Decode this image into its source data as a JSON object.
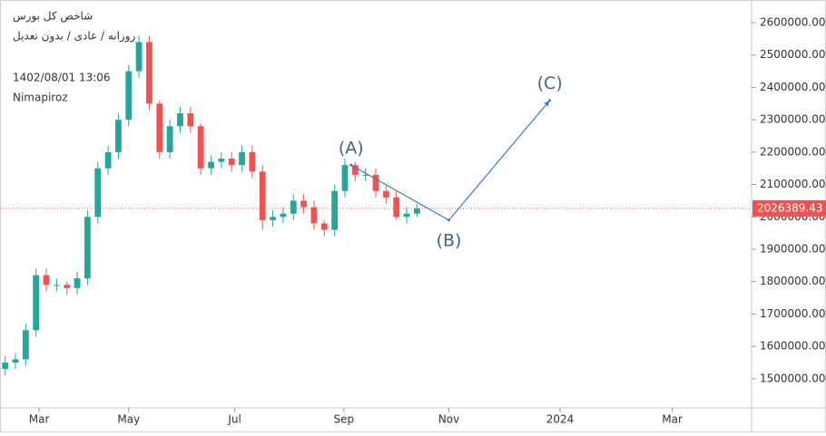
{
  "chart_data": {
    "type": "candlestick",
    "title": "شاخص کل بورس",
    "subtitle": "روزانه / عادی / بدون تعدیل",
    "timestamp": "1402/08/01 13:06",
    "author": "Nimapiroz",
    "x": [
      0,
      1,
      2,
      3,
      4,
      5,
      6,
      7,
      8,
      9,
      10,
      11,
      12,
      13,
      14,
      15,
      16,
      17,
      18,
      19,
      20,
      21,
      22,
      23,
      24,
      25,
      26,
      27,
      28,
      29,
      30,
      31,
      32,
      33,
      34,
      35,
      36,
      37,
      38,
      39,
      40
    ],
    "open": [
      1530000,
      1550000,
      1560000,
      1650000,
      1820000,
      1790000,
      1790000,
      1780000,
      1810000,
      2000000,
      2150000,
      2200000,
      2300000,
      2450000,
      2540000,
      2350000,
      2200000,
      2280000,
      2320000,
      2280000,
      2150000,
      2170000,
      2180000,
      2160000,
      2200000,
      2140000,
      1990000,
      2000000,
      2010000,
      2050000,
      2030000,
      1980000,
      1960000,
      2080000,
      2160000,
      2130000,
      2130000,
      2080000,
      2060000,
      2000000,
      2010000
    ],
    "high": [
      1570000,
      1580000,
      1670000,
      1840000,
      1840000,
      1810000,
      1800000,
      1830000,
      2020000,
      2170000,
      2220000,
      2320000,
      2470000,
      2560000,
      2560000,
      2360000,
      2300000,
      2340000,
      2340000,
      2290000,
      2190000,
      2200000,
      2200000,
      2220000,
      2220000,
      2160000,
      2020000,
      2030000,
      2070000,
      2070000,
      2050000,
      1990000,
      2100000,
      2180000,
      2170000,
      2150000,
      2150000,
      2100000,
      2080000,
      2030000,
      2040000
    ],
    "low": [
      1510000,
      1530000,
      1540000,
      1630000,
      1770000,
      1770000,
      1760000,
      1760000,
      1790000,
      1980000,
      2130000,
      2180000,
      2280000,
      2430000,
      2330000,
      2180000,
      2180000,
      2260000,
      2260000,
      2130000,
      2130000,
      2150000,
      2140000,
      2140000,
      2120000,
      1960000,
      1970000,
      1980000,
      1990000,
      2010000,
      1960000,
      1940000,
      1940000,
      2060000,
      2110000,
      2110000,
      2060000,
      2040000,
      1990000,
      1980000,
      2000000
    ],
    "close": [
      1550000,
      1560000,
      1650000,
      1820000,
      1790000,
      1790000,
      1780000,
      1810000,
      2000000,
      2150000,
      2200000,
      2300000,
      2450000,
      2540000,
      2350000,
      2200000,
      2280000,
      2320000,
      2280000,
      2150000,
      2170000,
      2180000,
      2160000,
      2200000,
      2140000,
      1990000,
      2000000,
      2010000,
      2050000,
      2030000,
      1980000,
      1960000,
      2080000,
      2160000,
      2130000,
      2130000,
      2080000,
      2060000,
      2000000,
      2010000,
      2026389.43
    ],
    "up_color": "#26a69a",
    "down_color": "#ef5350",
    "last_price": 2026389.43,
    "last_price_color": "#ef5350",
    "projection": {
      "color": "#3b7bbf",
      "label_color": "#3e6588",
      "points": [
        {
          "label": "(A)",
          "x": 33.6,
          "y": 2160000
        },
        {
          "label": "(B)",
          "x": 43.1,
          "y": 1990000
        },
        {
          "label": "(C)",
          "x": 52.9,
          "y": 2360000
        }
      ]
    },
    "xlim": [
      -0.5,
      72.5
    ],
    "xticks": [
      {
        "value": 3.3,
        "label": "Mar"
      },
      {
        "value": 12,
        "label": "May"
      },
      {
        "value": 22.3,
        "label": "Jul"
      },
      {
        "value": 32.9,
        "label": "Sep"
      },
      {
        "value": 43.1,
        "label": "Nov"
      },
      {
        "value": 53.9,
        "label": "2024"
      },
      {
        "value": 64.8,
        "label": "Mar"
      }
    ],
    "ylim": [
      1410000,
      2670000
    ],
    "yticks": [
      {
        "value": 1500000,
        "label": "1500000.00"
      },
      {
        "value": 1600000,
        "label": "1600000.00"
      },
      {
        "value": 1700000,
        "label": "1700000.00"
      },
      {
        "value": 1800000,
        "label": "1800000.00"
      },
      {
        "value": 1900000,
        "label": "1900000.00"
      },
      {
        "value": 2000000,
        "label": "2000000.00"
      },
      {
        "value": 2100000,
        "label": "2100000.00"
      },
      {
        "value": 2200000,
        "label": "2200000.00"
      },
      {
        "value": 2300000,
        "label": "2300000.00"
      },
      {
        "value": 2400000,
        "label": "2400000.00"
      },
      {
        "value": 2500000,
        "label": "2500000.00"
      },
      {
        "value": 2600000,
        "label": "2600000.00"
      }
    ]
  }
}
